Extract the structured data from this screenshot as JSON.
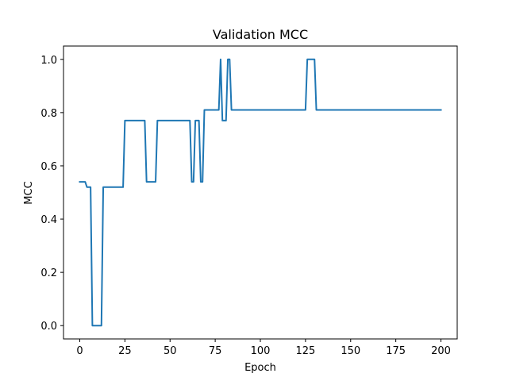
{
  "colors": {
    "line": "#1f77b4",
    "axes": "#000000",
    "background": "#ffffff"
  },
  "chart_data": {
    "type": "line",
    "title": "Validation MCC",
    "xlabel": "Epoch",
    "ylabel": "MCC",
    "xlim": [
      -9,
      209
    ],
    "ylim": [
      -0.05,
      1.05
    ],
    "xticks": [
      0,
      25,
      50,
      75,
      100,
      125,
      150,
      175,
      200
    ],
    "yticks": [
      0.0,
      0.2,
      0.4,
      0.6,
      0.8,
      1.0
    ],
    "ytick_labels": [
      "0.0",
      "0.2",
      "0.4",
      "0.6",
      "0.8",
      "1.0"
    ],
    "grid": false,
    "series": [
      {
        "x": [
          0,
          3,
          4,
          6,
          7,
          8,
          12,
          13,
          24,
          25,
          36,
          37,
          42,
          43,
          61,
          62,
          63,
          64,
          66,
          67,
          68,
          69,
          70,
          77,
          78,
          79,
          81,
          82,
          83,
          84,
          125,
          126,
          130,
          131,
          200
        ],
        "y": [
          0.54,
          0.54,
          0.52,
          0.52,
          0.0,
          0.0,
          0.0,
          0.52,
          0.52,
          0.77,
          0.77,
          0.54,
          0.54,
          0.77,
          0.77,
          0.54,
          0.54,
          0.77,
          0.77,
          0.54,
          0.54,
          0.81,
          0.81,
          0.81,
          1.0,
          0.77,
          0.77,
          1.0,
          1.0,
          0.81,
          0.81,
          1.0,
          1.0,
          0.81,
          0.81
        ]
      }
    ]
  }
}
